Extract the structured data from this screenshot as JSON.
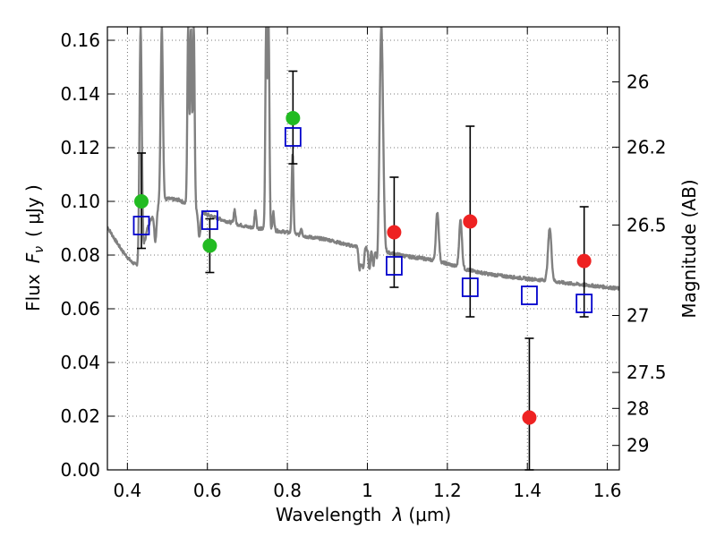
{
  "chart_data": {
    "type": "scatter",
    "xlabel": "Wavelength  λ (μm)",
    "xlabel_text": "Wavelength",
    "xlabel_symbol": "λ",
    "xlabel_unit": "(μm)",
    "ylabel": "Flux  F_ν  ( μJy )",
    "ylabel_text": "Flux",
    "ylabel_symbol": "F",
    "ylabel_symbol_sub": "ν",
    "ylabel_unit": "( μJy )",
    "y2label": "Magnitude (AB)",
    "xlim": [
      0.35,
      1.63
    ],
    "ylim": [
      0.0,
      0.165
    ],
    "x_ticks": [
      0.4,
      0.6,
      0.8,
      1.0,
      1.2,
      1.4,
      1.6
    ],
    "x_tick_labels": [
      "0.4",
      "0.6",
      "0.8",
      "1",
      "1.2",
      "1.4",
      "1.6"
    ],
    "y_ticks": [
      0.0,
      0.02,
      0.04,
      0.06,
      0.08,
      0.1,
      0.12,
      0.14,
      0.16
    ],
    "y_tick_labels": [
      "0.00",
      "0.02",
      "0.04",
      "0.06",
      "0.08",
      "0.10",
      "0.12",
      "0.14",
      "0.16"
    ],
    "y2_ticks": [
      {
        "label": "26",
        "flux": 0.1445
      },
      {
        "label": "26.2",
        "flux": 0.1202
      },
      {
        "label": "26.5",
        "flux": 0.0912
      },
      {
        "label": "27",
        "flux": 0.0575
      },
      {
        "label": "27.5",
        "flux": 0.0363
      },
      {
        "label": "28",
        "flux": 0.0229
      },
      {
        "label": "29",
        "flux": 0.0091
      }
    ],
    "grid": true,
    "colors": {
      "spectrum": "#808080",
      "optical": "#22bb22",
      "nir": "#ee2222",
      "model": "#0000cc",
      "errorbar": "#000000"
    },
    "series": [
      {
        "name": "observed-optical",
        "marker": "circle",
        "color": "#22bb22",
        "points": [
          {
            "x": 0.435,
            "y": 0.1,
            "err_low": 0.0825,
            "err_high": 0.118
          },
          {
            "x": 0.606,
            "y": 0.0835,
            "err_low": 0.0735,
            "err_high": 0.0935
          },
          {
            "x": 0.814,
            "y": 0.131,
            "err_low": 0.114,
            "err_high": 0.1485
          }
        ]
      },
      {
        "name": "observed-nir",
        "marker": "circle",
        "color": "#ee2222",
        "points": [
          {
            "x": 1.067,
            "y": 0.0885,
            "err_low": 0.068,
            "err_high": 0.109
          },
          {
            "x": 1.257,
            "y": 0.0925,
            "err_low": 0.057,
            "err_high": 0.128
          },
          {
            "x": 1.405,
            "y": 0.0195,
            "err_low": 0.0,
            "err_high": 0.049
          },
          {
            "x": 1.542,
            "y": 0.0778,
            "err_low": 0.057,
            "err_high": 0.098
          }
        ]
      },
      {
        "name": "model-photometry",
        "marker": "square-open",
        "color": "#0000cc",
        "points": [
          {
            "x": 0.435,
            "y": 0.091
          },
          {
            "x": 0.606,
            "y": 0.093
          },
          {
            "x": 0.814,
            "y": 0.124
          },
          {
            "x": 1.067,
            "y": 0.076
          },
          {
            "x": 1.257,
            "y": 0.068
          },
          {
            "x": 1.405,
            "y": 0.065
          },
          {
            "x": 1.542,
            "y": 0.062
          }
        ]
      }
    ],
    "spectrum": {
      "continuum": [
        [
          0.35,
          0.0905
        ],
        [
          0.37,
          0.0855
        ],
        [
          0.39,
          0.081
        ],
        [
          0.41,
          0.0775
        ],
        [
          0.425,
          0.076
        ],
        [
          0.43,
          0.0745
        ],
        [
          0.435,
          0.079
        ],
        [
          0.45,
          0.09
        ],
        [
          0.47,
          0.0975
        ],
        [
          0.5,
          0.101
        ],
        [
          0.53,
          0.1005
        ],
        [
          0.56,
          0.098
        ],
        [
          0.6,
          0.095
        ],
        [
          0.65,
          0.0925
        ],
        [
          0.7,
          0.0905
        ],
        [
          0.75,
          0.0895
        ],
        [
          0.8,
          0.0885
        ],
        [
          0.85,
          0.0868
        ],
        [
          0.9,
          0.0858
        ],
        [
          0.95,
          0.0838
        ],
        [
          1.0,
          0.0825
        ],
        [
          1.05,
          0.081
        ],
        [
          1.1,
          0.0795
        ],
        [
          1.15,
          0.0785
        ],
        [
          1.2,
          0.0768
        ],
        [
          1.25,
          0.0745
        ],
        [
          1.3,
          0.073
        ],
        [
          1.35,
          0.072
        ],
        [
          1.4,
          0.0712
        ],
        [
          1.45,
          0.0705
        ],
        [
          1.5,
          0.0695
        ],
        [
          1.55,
          0.0688
        ],
        [
          1.6,
          0.068
        ],
        [
          1.63,
          0.0675
        ]
      ],
      "emission_lines": [
        {
          "x": 0.433,
          "peak": 0.165,
          "width": 0.004
        },
        {
          "x": 0.486,
          "peak": 0.165,
          "width": 0.004
        },
        {
          "x": 0.552,
          "peak": 0.165,
          "width": 0.003
        },
        {
          "x": 0.559,
          "peak": 0.165,
          "width": 0.003
        },
        {
          "x": 0.566,
          "peak": 0.165,
          "width": 0.003
        },
        {
          "x": 0.747,
          "peak": 0.165,
          "width": 0.003
        },
        {
          "x": 0.753,
          "peak": 0.165,
          "width": 0.003
        },
        {
          "x": 0.813,
          "peak": 0.118,
          "width": 0.003
        },
        {
          "x": 1.035,
          "peak": 0.165,
          "width": 0.006
        },
        {
          "x": 1.175,
          "peak": 0.096,
          "width": 0.005
        },
        {
          "x": 1.233,
          "peak": 0.093,
          "width": 0.005
        },
        {
          "x": 1.456,
          "peak": 0.09,
          "width": 0.006
        },
        {
          "x": 0.668,
          "peak": 0.097,
          "width": 0.003
        },
        {
          "x": 0.72,
          "peak": 0.097,
          "width": 0.003
        },
        {
          "x": 0.765,
          "peak": 0.096,
          "width": 0.003
        },
        {
          "x": 0.835,
          "peak": 0.09,
          "width": 0.003
        }
      ],
      "absorption_features": [
        {
          "x": 0.47,
          "depth": 0.012,
          "width": 0.004
        },
        {
          "x": 0.58,
          "depth": 0.01,
          "width": 0.004
        },
        {
          "x": 0.98,
          "depth": 0.008,
          "width": 0.003
        },
        {
          "x": 0.985,
          "depth": 0.006,
          "width": 0.003
        },
        {
          "x": 0.99,
          "depth": 0.007,
          "width": 0.003
        },
        {
          "x": 1.005,
          "depth": 0.008,
          "width": 0.003
        },
        {
          "x": 1.015,
          "depth": 0.006,
          "width": 0.003
        },
        {
          "x": 1.025,
          "depth": 0.006,
          "width": 0.003
        }
      ]
    }
  }
}
